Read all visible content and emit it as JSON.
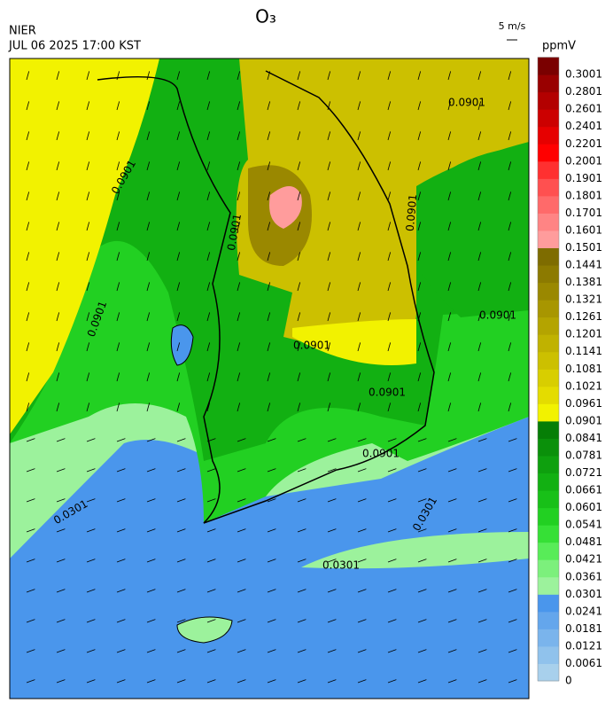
{
  "header": {
    "title": "O₃",
    "source": "NIER",
    "time": "JUL 06 2025 17:00 KST",
    "wind_scale": "5 m/s",
    "unit": "ppmV"
  },
  "colorbar": {
    "labels": [
      "0",
      "0.0061",
      "0.0121",
      "0.0181",
      "0.0241",
      "0.0301",
      "0.0361",
      "0.0421",
      "0.0481",
      "0.0541",
      "0.0601",
      "0.0661",
      "0.0721",
      "0.0781",
      "0.0841",
      "0.0901",
      "0.0961",
      "0.1021",
      "0.1081",
      "0.1141",
      "0.1201",
      "0.1261",
      "0.1321",
      "0.1381",
      "0.1441",
      "0.1501",
      "0.1601",
      "0.1701",
      "0.1801",
      "0.1901",
      "0.2001",
      "0.2201",
      "0.2401",
      "0.2601",
      "0.2801",
      "0.3001"
    ],
    "colors": [
      "#a8d0ec",
      "#90c2ec",
      "#7ab4ec",
      "#64a6ec",
      "#4a96ec",
      "#9cf29c",
      "#7cf07c",
      "#58ec58",
      "#36e036",
      "#22d022",
      "#18c018",
      "#12b012",
      "#0ea00e",
      "#0a900a",
      "#067e06",
      "#f2f200",
      "#e4dc00",
      "#d8ce00",
      "#ccc000",
      "#c0b200",
      "#b4a400",
      "#a89600",
      "#9a8800",
      "#8c7a00",
      "#7e6c00",
      "#ff9c9c",
      "#ff8484",
      "#ff6a6a",
      "#ff5050",
      "#ff3030",
      "#ff0000",
      "#e60000",
      "#cc0000",
      "#b30000",
      "#990000",
      "#7a0000"
    ]
  },
  "contours": [
    "0.0901",
    "0.0901",
    "0.0901",
    "0.0901",
    "0.0901",
    "0.0901",
    "0.0901",
    "0.0901",
    "0.0901",
    "0.0301",
    "0.0301",
    "0.0301"
  ]
}
